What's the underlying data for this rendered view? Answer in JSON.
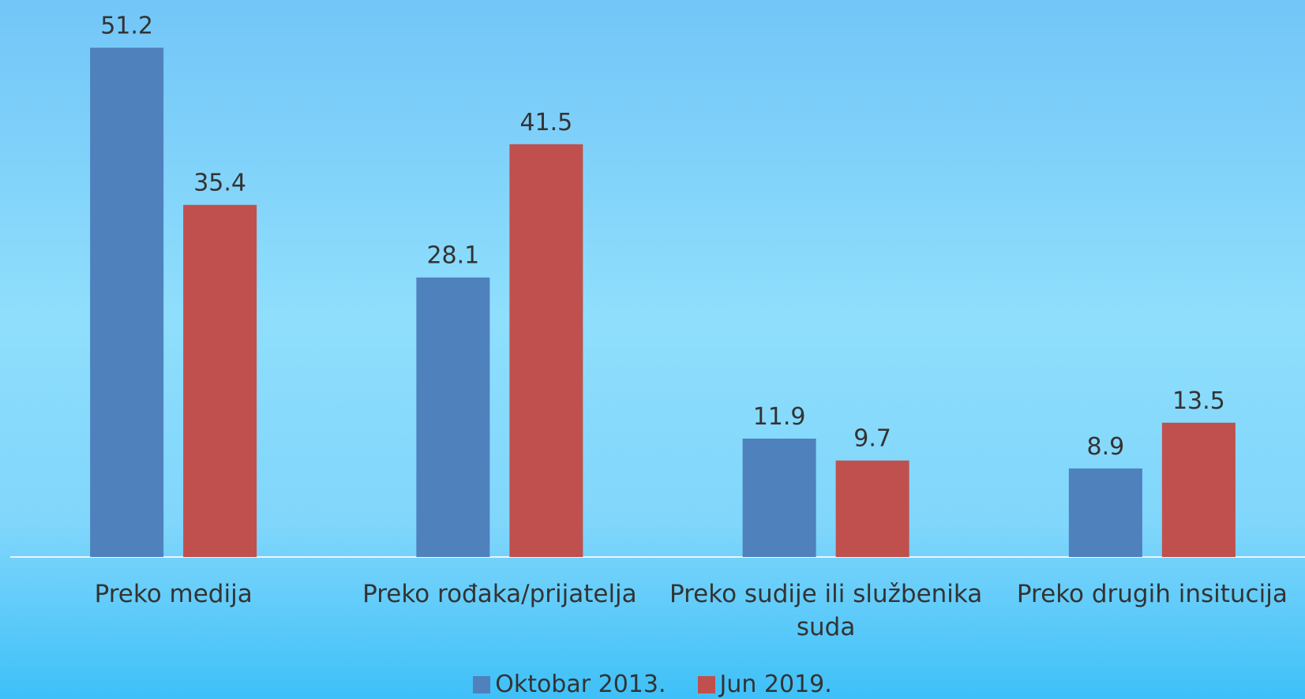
{
  "chart_data": {
    "type": "bar",
    "categories": [
      "Preko medija",
      "Preko rođaka/prijatelja",
      "Preko sudije ili službenika suda",
      "Preko drugih insitucija"
    ],
    "series": [
      {
        "name": "Oktobar 2013.",
        "color": "#4f81bd",
        "values": [
          51.2,
          28.1,
          11.9,
          8.9
        ]
      },
      {
        "name": "Jun 2019.",
        "color": "#c0504d",
        "values": [
          35.4,
          41.5,
          9.7,
          13.5
        ]
      }
    ],
    "ylim": [
      0,
      56
    ],
    "grid": false,
    "legend": "bottom"
  }
}
